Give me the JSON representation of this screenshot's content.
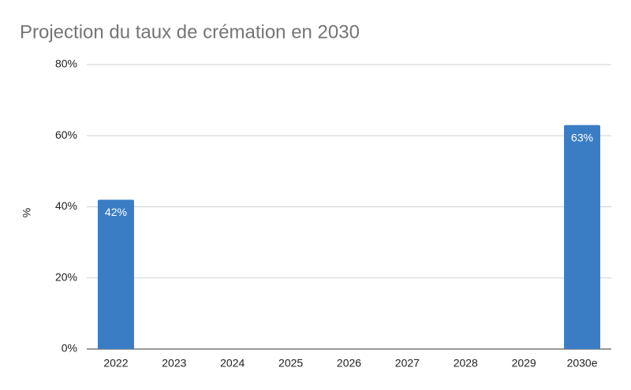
{
  "chart_data": {
    "type": "bar",
    "title": "Projection du taux de crémation en 2030",
    "y_label": "%",
    "categories": [
      "2022",
      "2023",
      "2024",
      "2025",
      "2026",
      "2027",
      "2028",
      "2029",
      "2030e"
    ],
    "values": [
      42,
      null,
      null,
      null,
      null,
      null,
      null,
      null,
      63
    ],
    "value_labels": [
      "42%",
      null,
      null,
      null,
      null,
      null,
      null,
      null,
      "63%"
    ],
    "color": "#3a7dc4",
    "ylim": [
      0,
      80
    ],
    "yticks": [
      {
        "value": 0,
        "label": "0%"
      },
      {
        "value": 20,
        "label": "20%"
      },
      {
        "value": 40,
        "label": "40%"
      },
      {
        "value": 60,
        "label": "60%"
      },
      {
        "value": 80,
        "label": "80%"
      }
    ],
    "grid": true
  }
}
